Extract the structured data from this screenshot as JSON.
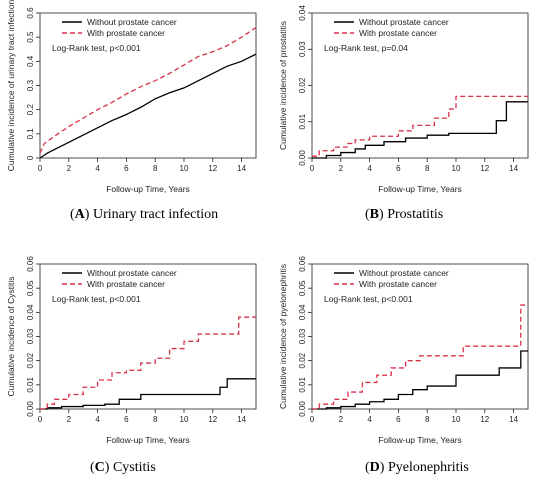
{
  "chart_data": [
    {
      "type": "line",
      "panel_letter": "A",
      "caption": "Urinary tract infection",
      "ylabel": "Cumulative incidence of urinary tract infection",
      "xlabel": "Follow-up Time, Years",
      "xlim": [
        0,
        15
      ],
      "ylim": [
        0,
        0.6
      ],
      "xticks": [
        0,
        2,
        4,
        6,
        8,
        10,
        12,
        14
      ],
      "yticks": [
        0,
        0.1,
        0.2,
        0.3,
        0.4,
        0.5,
        0.6
      ],
      "ytick_labels": [
        "0",
        "0.1",
        "0.2",
        "0.3",
        "0.4",
        "0.5",
        "0.6"
      ],
      "annotation": "Log-Rank test, p<0.001",
      "legend_placement": "top-left",
      "series": [
        {
          "name": "Without prostate cancer",
          "color": "#000000",
          "dash": "solid",
          "step": false,
          "x": [
            0,
            0.5,
            1,
            2,
            3,
            4,
            5,
            6,
            7,
            8,
            9,
            10,
            11,
            12,
            13,
            14,
            15
          ],
          "y": [
            0,
            0.02,
            0.035,
            0.065,
            0.095,
            0.125,
            0.155,
            0.18,
            0.21,
            0.245,
            0.27,
            0.29,
            0.32,
            0.35,
            0.38,
            0.4,
            0.43
          ]
        },
        {
          "name": "With prostate cancer",
          "color": "#d8324a",
          "dash": "dashed",
          "step": false,
          "x": [
            0,
            0.3,
            1,
            2,
            3,
            4,
            5,
            6,
            7,
            8,
            9,
            10,
            11,
            12,
            13,
            14,
            15
          ],
          "y": [
            0.02,
            0.06,
            0.09,
            0.13,
            0.165,
            0.2,
            0.23,
            0.265,
            0.295,
            0.32,
            0.35,
            0.385,
            0.42,
            0.44,
            0.465,
            0.5,
            0.54
          ]
        }
      ]
    },
    {
      "type": "line",
      "panel_letter": "B",
      "caption": "Prostatitis",
      "ylabel": "Cumulative incidence of prostatitis",
      "xlabel": "Follow-up Time, Years",
      "xlim": [
        0,
        15
      ],
      "ylim": [
        0,
        0.04
      ],
      "xticks": [
        0,
        2,
        4,
        6,
        8,
        10,
        12,
        14
      ],
      "yticks": [
        0,
        0.01,
        0.02,
        0.03,
        0.04
      ],
      "ytick_labels": [
        "0.00",
        "0.01",
        "0.02",
        "0.03",
        "0.04"
      ],
      "annotation": "Log-Rank test, p=0.04",
      "legend_placement": "top-right",
      "series": [
        {
          "name": "Without prostate cancer",
          "color": "#000000",
          "dash": "solid",
          "step": true,
          "x": [
            0,
            1,
            2,
            3,
            3.7,
            5,
            6.5,
            8,
            9.5,
            12.8,
            13.5,
            15
          ],
          "y": [
            0,
            0.0007,
            0.0015,
            0.0025,
            0.0035,
            0.0045,
            0.0055,
            0.0063,
            0.0068,
            0.0103,
            0.0155,
            0.0155
          ]
        },
        {
          "name": "With prostate cancer",
          "color": "#d8324a",
          "dash": "dashed",
          "step": true,
          "x": [
            0,
            0.5,
            1.5,
            2.5,
            3,
            4,
            6,
            7,
            8.5,
            9.5,
            10,
            15
          ],
          "y": [
            0.0005,
            0.002,
            0.003,
            0.004,
            0.005,
            0.006,
            0.0075,
            0.009,
            0.011,
            0.0135,
            0.017,
            0.017
          ]
        }
      ]
    },
    {
      "type": "line",
      "panel_letter": "C",
      "caption": "Cystitis",
      "ylabel": "Cumulative incidence of Cystitis",
      "xlabel": "Follow-up Time, Years",
      "xlim": [
        0,
        15
      ],
      "ylim": [
        0,
        0.06
      ],
      "xticks": [
        0,
        2,
        4,
        6,
        8,
        10,
        12,
        14
      ],
      "yticks": [
        0,
        0.01,
        0.02,
        0.03,
        0.04,
        0.05,
        0.06
      ],
      "ytick_labels": [
        "0.00",
        "0.01",
        "0.02",
        "0.03",
        "0.04",
        "0.05",
        "0.06"
      ],
      "annotation": "Log-Rank test, p<0.001",
      "legend_placement": "top-right",
      "series": [
        {
          "name": "Without prostate cancer",
          "color": "#000000",
          "dash": "solid",
          "step": true,
          "x": [
            0,
            0.5,
            1.5,
            3,
            4.5,
            5.5,
            7,
            12.5,
            13,
            15
          ],
          "y": [
            0,
            0.0005,
            0.001,
            0.0015,
            0.002,
            0.004,
            0.006,
            0.009,
            0.0125,
            0.0125
          ]
        },
        {
          "name": "With prostate cancer",
          "color": "#d8324a",
          "dash": "dashed",
          "step": true,
          "x": [
            0,
            0.5,
            1,
            2,
            3,
            4,
            5,
            6,
            7,
            8,
            9,
            10,
            11,
            12,
            13.8,
            15
          ],
          "y": [
            0,
            0.002,
            0.004,
            0.006,
            0.009,
            0.012,
            0.015,
            0.016,
            0.019,
            0.021,
            0.025,
            0.028,
            0.031,
            0.031,
            0.038,
            0.038
          ]
        }
      ]
    },
    {
      "type": "line",
      "panel_letter": "D",
      "caption": "Pyelonephritis",
      "ylabel": "Cumulative incidence of pyelonephritis",
      "xlabel": "Follow-up Time, Years",
      "xlim": [
        0,
        15
      ],
      "ylim": [
        0,
        0.06
      ],
      "xticks": [
        0,
        2,
        4,
        6,
        8,
        10,
        12,
        14
      ],
      "yticks": [
        0,
        0.01,
        0.02,
        0.03,
        0.04,
        0.05,
        0.06
      ],
      "ytick_labels": [
        "0.00",
        "0.01",
        "0.02",
        "0.03",
        "0.04",
        "0.05",
        "0.06"
      ],
      "annotation": "Log-Rank test, p<0.001",
      "legend_placement": "top-right",
      "series": [
        {
          "name": "Without prostate cancer",
          "color": "#000000",
          "dash": "solid",
          "step": true,
          "x": [
            0,
            1,
            2,
            3,
            4,
            5,
            6,
            7,
            8,
            10,
            13,
            14.5,
            15
          ],
          "y": [
            0,
            0.0005,
            0.001,
            0.002,
            0.003,
            0.004,
            0.006,
            0.008,
            0.0095,
            0.014,
            0.017,
            0.024,
            0.024
          ]
        },
        {
          "name": "With prostate cancer",
          "color": "#d8324a",
          "dash": "dashed",
          "step": true,
          "x": [
            0,
            0.5,
            1.5,
            2.5,
            3.5,
            4.5,
            5.5,
            6.5,
            7.5,
            8.5,
            10.5,
            14,
            14.5,
            15
          ],
          "y": [
            0,
            0.002,
            0.004,
            0.007,
            0.011,
            0.014,
            0.017,
            0.02,
            0.022,
            0.022,
            0.026,
            0.026,
            0.043,
            0.043
          ]
        }
      ]
    }
  ]
}
